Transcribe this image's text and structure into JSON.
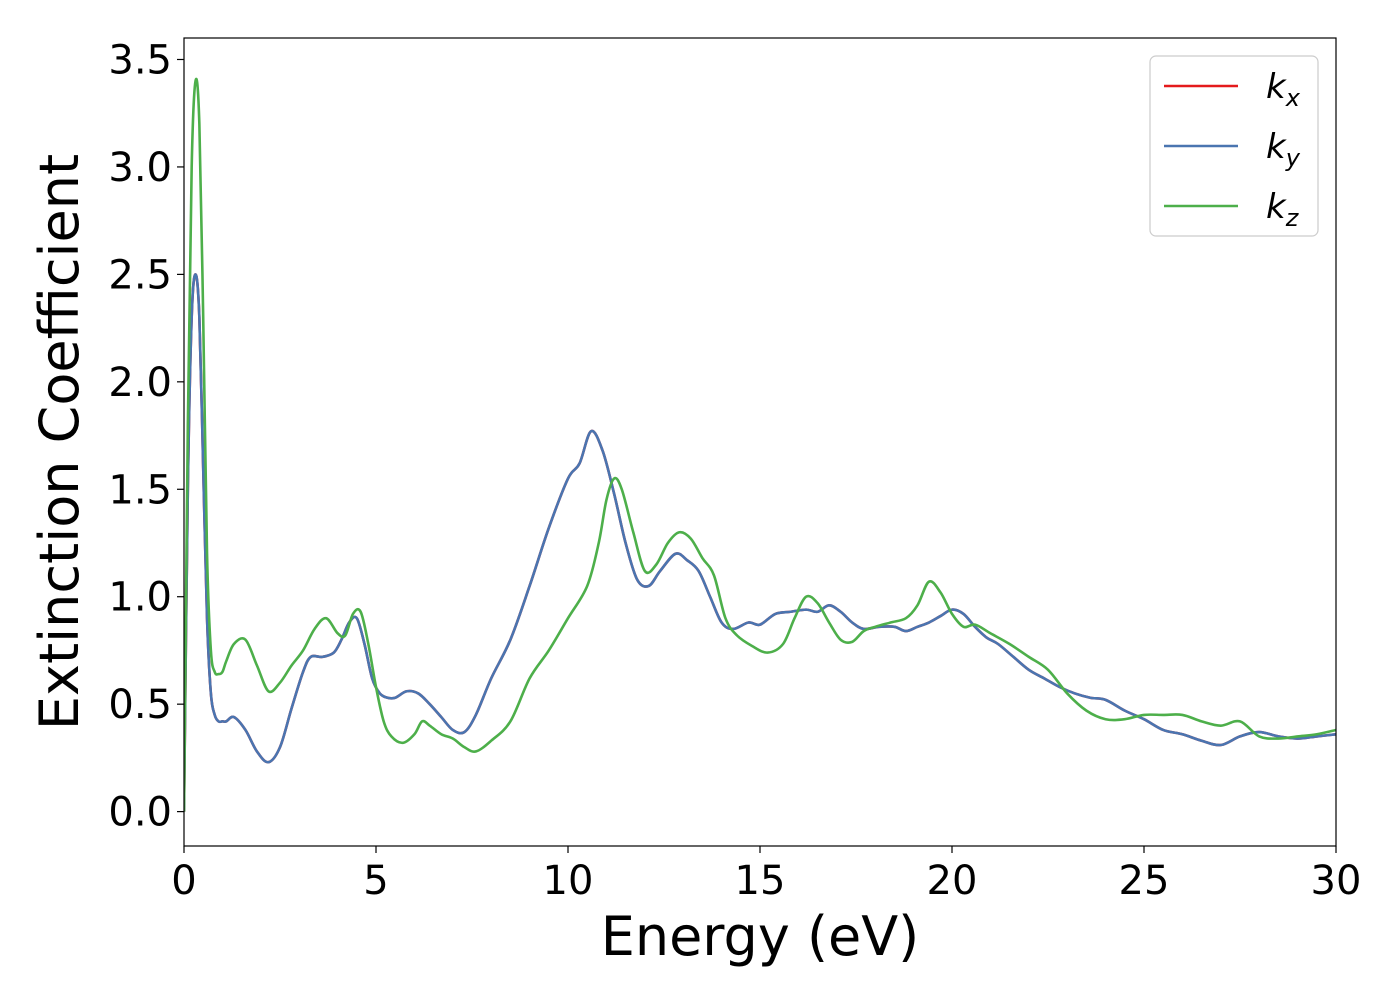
{
  "chart_data": {
    "type": "line",
    "title": "",
    "xlabel": "Energy (eV)",
    "ylabel": "Extinction Coefficient",
    "xlim": [
      0,
      30
    ],
    "ylim": [
      -0.16,
      3.6
    ],
    "xticks": [
      0,
      5,
      10,
      15,
      20,
      25,
      30
    ],
    "xtick_labels": [
      "0",
      "5",
      "10",
      "15",
      "20",
      "25",
      "30"
    ],
    "yticks": [
      0.0,
      0.5,
      1.0,
      1.5,
      2.0,
      2.5,
      3.0,
      3.5
    ],
    "ytick_labels": [
      "0.0",
      "0.5",
      "1.0",
      "1.5",
      "2.0",
      "2.5",
      "3.0",
      "3.5"
    ],
    "grid": false,
    "legend": {
      "position": "top-right"
    },
    "series": [
      {
        "name": "kx",
        "label_main": "k",
        "label_sub": "x",
        "color": "#e41a1c",
        "x": [
          0,
          0.1,
          0.2,
          0.3,
          0.4,
          0.5,
          0.6,
          0.7,
          0.8,
          0.9,
          1.0,
          1.1,
          1.3,
          1.6,
          1.9,
          2.2,
          2.5,
          2.8,
          3.1,
          3.3,
          3.6,
          3.9,
          4.1,
          4.3,
          4.5,
          4.7,
          4.9,
          5.1,
          5.3,
          5.5,
          5.8,
          6.1,
          6.4,
          6.7,
          7.0,
          7.3,
          7.6,
          8.0,
          8.5,
          9.0,
          9.5,
          10.0,
          10.3,
          10.6,
          10.9,
          11.2,
          11.5,
          11.8,
          12.1,
          12.4,
          12.8,
          13.1,
          13.4,
          13.7,
          14.0,
          14.3,
          14.7,
          15.0,
          15.4,
          15.8,
          16.2,
          16.5,
          16.8,
          17.1,
          17.4,
          17.7,
          18.1,
          18.5,
          18.8,
          19.1,
          19.4,
          19.7,
          20.0,
          20.3,
          20.6,
          20.9,
          21.2,
          21.6,
          22.0,
          22.4,
          22.8,
          23.2,
          23.6,
          24.0,
          24.5,
          25.0,
          25.5,
          26.0,
          26.5,
          27.0,
          27.5,
          28.0,
          28.5,
          29.0,
          29.5,
          30.0
        ],
        "values": [
          0.0,
          1.5,
          2.3,
          2.5,
          2.3,
          1.6,
          0.9,
          0.55,
          0.45,
          0.42,
          0.42,
          0.42,
          0.44,
          0.38,
          0.28,
          0.23,
          0.3,
          0.48,
          0.65,
          0.72,
          0.72,
          0.74,
          0.8,
          0.88,
          0.9,
          0.78,
          0.62,
          0.55,
          0.53,
          0.53,
          0.56,
          0.55,
          0.5,
          0.44,
          0.38,
          0.37,
          0.45,
          0.62,
          0.8,
          1.05,
          1.32,
          1.55,
          1.62,
          1.77,
          1.68,
          1.48,
          1.25,
          1.08,
          1.05,
          1.12,
          1.2,
          1.17,
          1.12,
          1.0,
          0.88,
          0.85,
          0.88,
          0.87,
          0.92,
          0.93,
          0.94,
          0.93,
          0.96,
          0.93,
          0.88,
          0.85,
          0.86,
          0.86,
          0.84,
          0.86,
          0.88,
          0.91,
          0.94,
          0.92,
          0.86,
          0.81,
          0.78,
          0.72,
          0.66,
          0.62,
          0.58,
          0.55,
          0.53,
          0.52,
          0.47,
          0.43,
          0.38,
          0.36,
          0.33,
          0.31,
          0.35,
          0.37,
          0.35,
          0.34,
          0.35,
          0.36
        ]
      },
      {
        "name": "ky",
        "label_main": "k",
        "label_sub": "y",
        "color": "#4a75b0",
        "x": [
          0,
          0.1,
          0.2,
          0.3,
          0.4,
          0.5,
          0.6,
          0.7,
          0.8,
          0.9,
          1.0,
          1.1,
          1.3,
          1.6,
          1.9,
          2.2,
          2.5,
          2.8,
          3.1,
          3.3,
          3.6,
          3.9,
          4.1,
          4.3,
          4.5,
          4.7,
          4.9,
          5.1,
          5.3,
          5.5,
          5.8,
          6.1,
          6.4,
          6.7,
          7.0,
          7.3,
          7.6,
          8.0,
          8.5,
          9.0,
          9.5,
          10.0,
          10.3,
          10.6,
          10.9,
          11.2,
          11.5,
          11.8,
          12.1,
          12.4,
          12.8,
          13.1,
          13.4,
          13.7,
          14.0,
          14.3,
          14.7,
          15.0,
          15.4,
          15.8,
          16.2,
          16.5,
          16.8,
          17.1,
          17.4,
          17.7,
          18.1,
          18.5,
          18.8,
          19.1,
          19.4,
          19.7,
          20.0,
          20.3,
          20.6,
          20.9,
          21.2,
          21.6,
          22.0,
          22.4,
          22.8,
          23.2,
          23.6,
          24.0,
          24.5,
          25.0,
          25.5,
          26.0,
          26.5,
          27.0,
          27.5,
          28.0,
          28.5,
          29.0,
          29.5,
          30.0
        ],
        "values": [
          0.0,
          1.5,
          2.3,
          2.5,
          2.3,
          1.6,
          0.9,
          0.55,
          0.45,
          0.42,
          0.42,
          0.42,
          0.44,
          0.38,
          0.28,
          0.23,
          0.3,
          0.48,
          0.65,
          0.72,
          0.72,
          0.74,
          0.8,
          0.88,
          0.9,
          0.78,
          0.62,
          0.55,
          0.53,
          0.53,
          0.56,
          0.55,
          0.5,
          0.44,
          0.38,
          0.37,
          0.45,
          0.62,
          0.8,
          1.05,
          1.32,
          1.55,
          1.62,
          1.77,
          1.68,
          1.48,
          1.25,
          1.08,
          1.05,
          1.12,
          1.2,
          1.17,
          1.12,
          1.0,
          0.88,
          0.85,
          0.88,
          0.87,
          0.92,
          0.93,
          0.94,
          0.93,
          0.96,
          0.93,
          0.88,
          0.85,
          0.86,
          0.86,
          0.84,
          0.86,
          0.88,
          0.91,
          0.94,
          0.92,
          0.86,
          0.81,
          0.78,
          0.72,
          0.66,
          0.62,
          0.58,
          0.55,
          0.53,
          0.52,
          0.47,
          0.43,
          0.38,
          0.36,
          0.33,
          0.31,
          0.35,
          0.37,
          0.35,
          0.34,
          0.35,
          0.36
        ]
      },
      {
        "name": "kz",
        "label_main": "k",
        "label_sub": "z",
        "color": "#4daf4a",
        "x": [
          0,
          0.1,
          0.2,
          0.3,
          0.4,
          0.5,
          0.6,
          0.7,
          0.8,
          0.9,
          1.0,
          1.1,
          1.3,
          1.6,
          1.9,
          2.2,
          2.5,
          2.8,
          3.1,
          3.4,
          3.7,
          4.0,
          4.2,
          4.4,
          4.6,
          4.8,
          5.0,
          5.2,
          5.4,
          5.7,
          6.0,
          6.2,
          6.4,
          6.7,
          7.0,
          7.3,
          7.6,
          8.0,
          8.5,
          9.0,
          9.5,
          10.0,
          10.5,
          10.8,
          11.0,
          11.2,
          11.4,
          11.7,
          12.0,
          12.3,
          12.6,
          12.9,
          13.2,
          13.5,
          13.8,
          14.1,
          14.4,
          14.8,
          15.2,
          15.6,
          15.9,
          16.2,
          16.5,
          16.8,
          17.1,
          17.4,
          17.7,
          18.0,
          18.4,
          18.8,
          19.1,
          19.4,
          19.7,
          20.0,
          20.3,
          20.6,
          21.0,
          21.5,
          22.0,
          22.5,
          23.0,
          23.5,
          24.0,
          24.5,
          25.0,
          25.5,
          26.0,
          26.5,
          27.0,
          27.5,
          28.0,
          28.5,
          29.0,
          29.5,
          30.0
        ],
        "values": [
          0.0,
          1.8,
          3.0,
          3.4,
          3.2,
          2.3,
          1.2,
          0.75,
          0.65,
          0.64,
          0.65,
          0.7,
          0.78,
          0.8,
          0.68,
          0.56,
          0.6,
          0.68,
          0.75,
          0.85,
          0.9,
          0.83,
          0.82,
          0.92,
          0.93,
          0.78,
          0.58,
          0.42,
          0.35,
          0.32,
          0.36,
          0.42,
          0.4,
          0.36,
          0.34,
          0.3,
          0.28,
          0.33,
          0.42,
          0.62,
          0.75,
          0.9,
          1.05,
          1.25,
          1.45,
          1.55,
          1.5,
          1.3,
          1.12,
          1.15,
          1.25,
          1.3,
          1.27,
          1.18,
          1.1,
          0.9,
          0.82,
          0.77,
          0.74,
          0.78,
          0.9,
          1.0,
          0.97,
          0.88,
          0.8,
          0.79,
          0.84,
          0.86,
          0.88,
          0.9,
          0.96,
          1.07,
          1.02,
          0.92,
          0.86,
          0.87,
          0.83,
          0.78,
          0.72,
          0.66,
          0.55,
          0.47,
          0.43,
          0.43,
          0.45,
          0.45,
          0.45,
          0.42,
          0.4,
          0.42,
          0.35,
          0.34,
          0.35,
          0.36,
          0.38
        ]
      }
    ]
  }
}
